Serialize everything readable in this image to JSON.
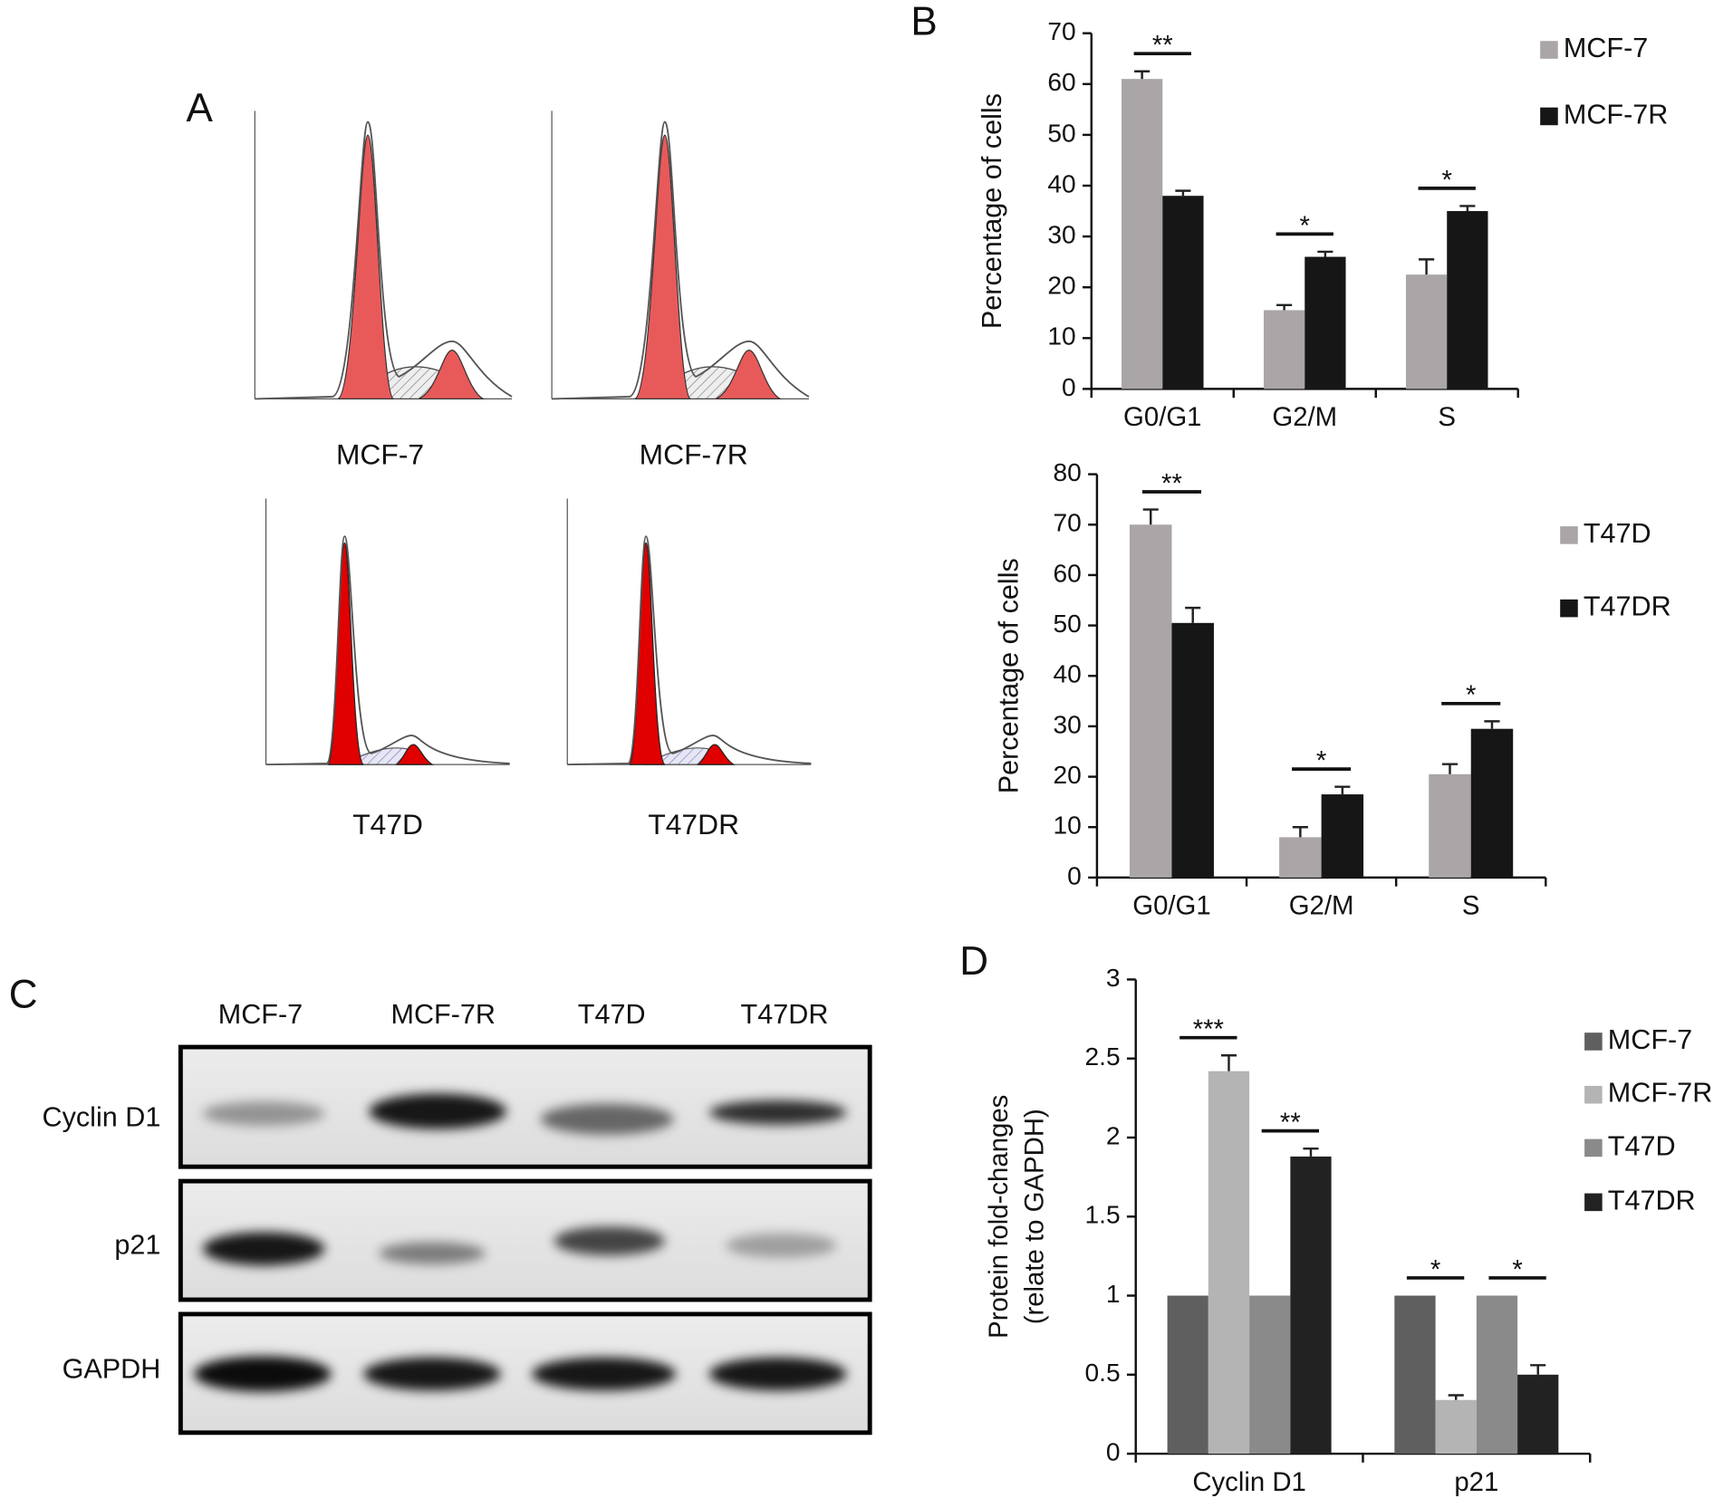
{
  "panel_labels": [
    "A",
    "B",
    "C",
    "D"
  ],
  "flow_cytometry": {
    "samples": [
      "MCF-7",
      "MCF-7R",
      "T47D",
      "T47DR"
    ]
  },
  "western_blot": {
    "lanes": [
      "MCF-7",
      "MCF-7R",
      "T47D",
      "T47DR"
    ],
    "proteins": [
      "Cyclin D1",
      "p21",
      "GAPDH"
    ]
  },
  "chart_data": [
    {
      "type": "bar",
      "categories": [
        "G0/G1",
        "G2/M",
        "S"
      ],
      "ylabel": "Percentage of cells",
      "ylim": [
        0,
        70
      ],
      "yticks": [
        0,
        10,
        20,
        30,
        40,
        50,
        60,
        70
      ],
      "legend": "right",
      "annotations": [
        "**",
        "*",
        "*"
      ],
      "series": [
        {
          "name": "MCF-7",
          "color": "#aaa5a6",
          "values": [
            61,
            15.5,
            22.5
          ],
          "errors": [
            1.5,
            1,
            3
          ]
        },
        {
          "name": "MCF-7R",
          "color": "#161616",
          "values": [
            38,
            26,
            35
          ],
          "errors": [
            1,
            1,
            1
          ]
        }
      ]
    },
    {
      "type": "bar",
      "categories": [
        "G0/G1",
        "G2/M",
        "S"
      ],
      "ylabel": "Percentage of cells",
      "ylim": [
        0,
        80
      ],
      "yticks": [
        0,
        10,
        20,
        30,
        40,
        50,
        60,
        70,
        80
      ],
      "legend": "right",
      "annotations": [
        "**",
        "*",
        "*"
      ],
      "series": [
        {
          "name": "T47D",
          "color": "#aaa5a6",
          "values": [
            70,
            8,
            20.5
          ],
          "errors": [
            3,
            2,
            2
          ]
        },
        {
          "name": "T47DR",
          "color": "#161616",
          "values": [
            50.5,
            16.5,
            29.5
          ],
          "errors": [
            3,
            1.5,
            1.5
          ]
        }
      ]
    },
    {
      "type": "bar",
      "categories": [
        "Cyclin D1",
        "p21"
      ],
      "ylabel": [
        "Protein fold-changes",
        "(relate to GAPDH)"
      ],
      "ylim": [
        0,
        3
      ],
      "yticks": [
        0,
        0.5,
        1,
        1.5,
        2,
        2.5,
        3
      ],
      "legend": "right",
      "annotations": [
        "***",
        "**",
        "*",
        "*"
      ],
      "series": [
        {
          "name": "MCF-7",
          "color": "#5f5f5f",
          "values": [
            1,
            1
          ],
          "errors": [
            null,
            null
          ]
        },
        {
          "name": "MCF-7R",
          "color": "#b4b4b4",
          "values": [
            2.42,
            0.34
          ],
          "errors": [
            0.1,
            0.03
          ]
        },
        {
          "name": "T47D",
          "color": "#8a8a8a",
          "values": [
            1,
            1
          ],
          "errors": [
            null,
            null
          ]
        },
        {
          "name": "T47DR",
          "color": "#222222",
          "values": [
            1.88,
            0.5
          ],
          "errors": [
            0.05,
            0.06
          ]
        }
      ]
    }
  ]
}
